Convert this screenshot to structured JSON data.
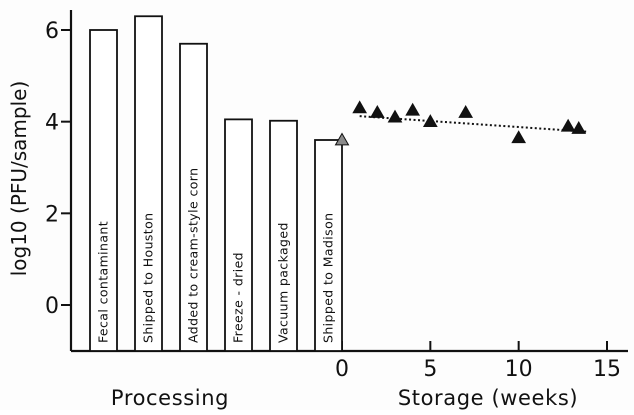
{
  "chart_data": {
    "type": "bar+scatter",
    "ylabel": "log10 (PFU/sample)",
    "ylim": [
      -1.2,
      6.5
    ],
    "yticks": [
      0,
      2,
      4,
      6
    ],
    "processing": {
      "label": "Processing",
      "bars": [
        {
          "label": "Fecal contaminant",
          "value": 6.0
        },
        {
          "label": "Shipped to Houston",
          "value": 6.3
        },
        {
          "label": "Added to cream-style corn",
          "value": 5.7
        },
        {
          "label": "Freeze - dried",
          "value": 4.05
        },
        {
          "label": "Vacuum packaged",
          "value": 4.02
        },
        {
          "label": "Shipped to Madison",
          "value": 3.6
        }
      ]
    },
    "storage": {
      "label": "Storage (weeks)",
      "xlim": [
        0,
        15
      ],
      "xticks": [
        0,
        5,
        10,
        15
      ],
      "points": [
        {
          "x": 0,
          "y": 3.6
        },
        {
          "x": 1,
          "y": 4.3
        },
        {
          "x": 2,
          "y": 4.2
        },
        {
          "x": 3,
          "y": 4.1
        },
        {
          "x": 4,
          "y": 4.25
        },
        {
          "x": 5,
          "y": 4.0
        },
        {
          "x": 7,
          "y": 4.2
        },
        {
          "x": 10,
          "y": 3.65
        },
        {
          "x": 12.8,
          "y": 3.9
        },
        {
          "x": 13.4,
          "y": 3.85
        }
      ],
      "trend": [
        {
          "x": 1,
          "y": 4.12
        },
        {
          "x": 13.9,
          "y": 3.78
        }
      ],
      "marker": "filled-triangle"
    },
    "colors": {
      "ink": "#111111",
      "paper": "#fdfdfd"
    }
  }
}
